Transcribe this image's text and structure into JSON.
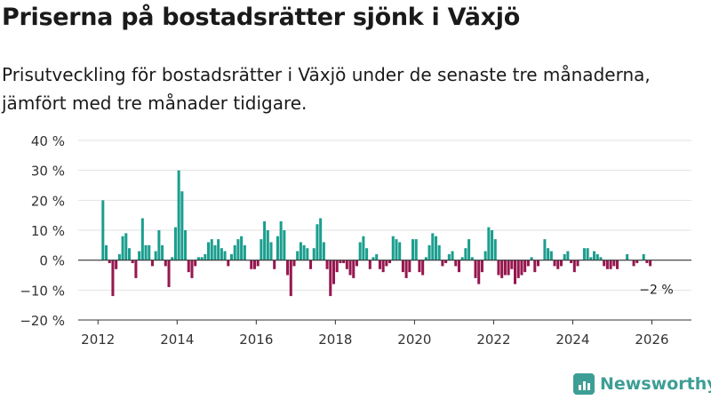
{
  "title": "Priserna på bostadsrätter sjönk i Växjö",
  "subtitle": "Prisutveckling för bostadsrätter i Växjö under de senaste tre månaderna, jämfört med tre månader tidigare.",
  "brand": {
    "name": "Newsworthy",
    "color": "#3d9e95"
  },
  "colors": {
    "positive": "#1b9e8e",
    "negative": "#96174f",
    "grid": "#e2e2e2",
    "axis": "#333333"
  },
  "chart_data": {
    "type": "bar",
    "title": "Priserna på bostadsrätter sjönk i Växjö",
    "ylabel": "",
    "xlabel": "",
    "ylim": [
      -20,
      40
    ],
    "xlim": [
      2011.5,
      2027.0
    ],
    "y_ticks": [
      -20,
      -10,
      0,
      10,
      20,
      30,
      40
    ],
    "y_tick_labels": [
      "−20 %",
      "−10 %",
      "0 %",
      "10 %",
      "20 %",
      "30 %",
      "40 %"
    ],
    "x_ticks": [
      2012,
      2014,
      2016,
      2018,
      2020,
      2022,
      2024,
      2026
    ],
    "x_tick_labels": [
      "2012",
      "2014",
      "2016",
      "2018",
      "2020",
      "2022",
      "2024",
      "2026"
    ],
    "start": {
      "year": 2012,
      "month": 1
    },
    "values": [
      0,
      20,
      5,
      -1,
      -12,
      -3,
      2,
      8,
      9,
      4,
      -1,
      -6,
      3,
      14,
      5,
      5,
      -2,
      3,
      10,
      5,
      -2,
      -9,
      1,
      11,
      30,
      23,
      10,
      -4,
      -6,
      -2,
      1,
      1,
      2,
      6,
      7,
      5,
      7,
      4,
      3,
      -2,
      2,
      5,
      7,
      8,
      5,
      0,
      -3,
      -3,
      -2,
      7,
      13,
      10,
      6,
      -3,
      8,
      13,
      10,
      -5,
      -12,
      -2,
      3,
      6,
      5,
      4,
      -3,
      4,
      12,
      14,
      6,
      -3,
      -12,
      -8,
      -4,
      -1,
      -1,
      -3,
      -5,
      -6,
      -2,
      6,
      8,
      4,
      -3,
      1,
      2,
      -3,
      -4,
      -2,
      -1,
      8,
      7,
      6,
      -4,
      -6,
      -4,
      7,
      7,
      -4,
      -5,
      1,
      5,
      9,
      8,
      5,
      -2,
      -1,
      2,
      3,
      -2,
      -4,
      1,
      4,
      7,
      1,
      -6,
      -8,
      -4,
      3,
      11,
      10,
      7,
      -5,
      -6,
      -5,
      -5,
      -3,
      -8,
      -6,
      -5,
      -4,
      -2,
      1,
      -4,
      -2,
      0,
      7,
      4,
      3,
      -2,
      -3,
      -2,
      2,
      3,
      -1,
      -4,
      -2,
      0,
      4,
      4,
      1,
      3,
      2,
      1,
      -2,
      -3,
      -3,
      -2,
      -3,
      0,
      0,
      2,
      0,
      -2,
      -1,
      0,
      2,
      -1,
      -2
    ],
    "annotation": {
      "text": "−2 %",
      "value": -2
    }
  }
}
